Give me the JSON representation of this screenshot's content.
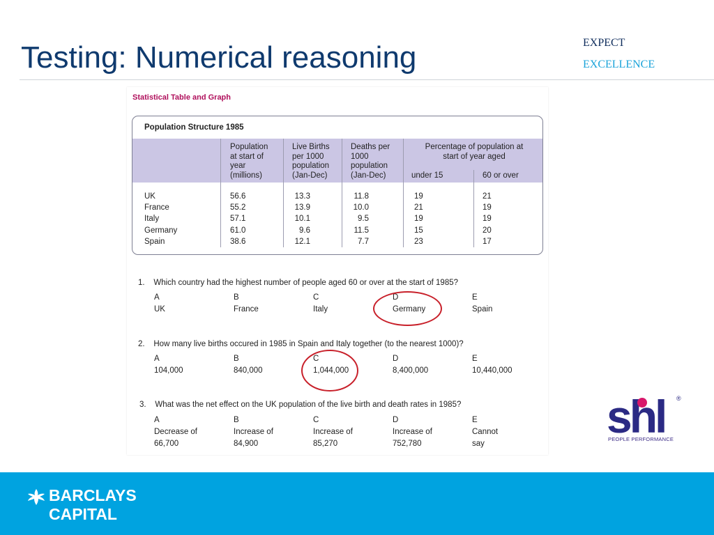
{
  "header": {
    "title": "Testing: Numerical reasoning",
    "tagline_line1": "EXPECT",
    "tagline_line2": "EXCELLENCE"
  },
  "sheet": {
    "heading": "Statistical Table and Graph",
    "table": {
      "title": "Population Structure 1985",
      "col_headers": {
        "population": [
          "Population",
          "at start of",
          "year",
          "(millions)"
        ],
        "births": [
          "Live Births",
          "per 1000",
          "population",
          "(Jan-Dec)"
        ],
        "deaths": [
          "Deaths per",
          "1000",
          "population",
          "(Jan-Dec)"
        ],
        "percentage": [
          "Percentage of population at",
          "start of year aged"
        ],
        "under15": "under 15",
        "over60": "60 or over"
      },
      "rows": [
        {
          "country": "UK",
          "population": "56.6",
          "births": "13.3",
          "deaths": "11.8",
          "under15": "19",
          "over60": "21"
        },
        {
          "country": "France",
          "population": "55.2",
          "births": "13.9",
          "deaths": "10.0",
          "under15": "21",
          "over60": "19"
        },
        {
          "country": "Italy",
          "population": "57.1",
          "births": "10.1",
          "deaths": "9.5",
          "under15": "19",
          "over60": "19"
        },
        {
          "country": "Germany",
          "population": "61.0",
          "births": "9.6",
          "deaths": "11.5",
          "under15": "15",
          "over60": "20"
        },
        {
          "country": "Spain",
          "population": "38.6",
          "births": "12.1",
          "deaths": "7.7",
          "under15": "23",
          "over60": "17"
        }
      ]
    },
    "questions": [
      {
        "number": "1.",
        "text": "Which country had the highest number of people aged 60 or over at the start of 1985?",
        "options": [
          {
            "letter": "A",
            "text": "UK"
          },
          {
            "letter": "B",
            "text": "France"
          },
          {
            "letter": "C",
            "text": "Italy"
          },
          {
            "letter": "D",
            "text": "Germany"
          },
          {
            "letter": "E",
            "text": "Spain"
          }
        ],
        "circled": "D"
      },
      {
        "number": "2.",
        "text": "How many live births occured in 1985 in Spain and Italy together (to the nearest 1000)?",
        "options": [
          {
            "letter": "A",
            "text": "104,000"
          },
          {
            "letter": "B",
            "text": "840,000"
          },
          {
            "letter": "C",
            "text": "1,044,000"
          },
          {
            "letter": "D",
            "text": "8,400,000"
          },
          {
            "letter": "E",
            "text": "10,440,000"
          }
        ],
        "circled": "C"
      },
      {
        "number": "3.",
        "text": "What was the net effect on the UK population of the live birth and death rates in 1985?",
        "options": [
          {
            "letter": "A",
            "text": [
              "Decrease of",
              "66,700"
            ]
          },
          {
            "letter": "B",
            "text": [
              "Increase of",
              "84,900"
            ]
          },
          {
            "letter": "C",
            "text": [
              "Increase of",
              "85,270"
            ]
          },
          {
            "letter": "D",
            "text": [
              "Increase of",
              "752,780"
            ]
          },
          {
            "letter": "E",
            "text": [
              "Cannot",
              "say"
            ]
          }
        ]
      }
    ]
  },
  "logos": {
    "shl_wordmark": "shl",
    "shl_registered": "®",
    "shl_tagline": "PEOPLE PERFORMANCE",
    "barclays_line1": "BARCLAYS",
    "barclays_line2": "CAPITAL",
    "barclays_icon": "eagle-icon"
  },
  "colors": {
    "title": "#0f3a6e",
    "tagline_dark": "#0f2d5c",
    "tagline_light": "#1aa3d9",
    "heading_magenta": "#b0105c",
    "table_band": "#cbc6e4",
    "answer_circle": "#c8202a",
    "footer": "#00a3e0",
    "shl_blue": "#2b2a84",
    "shl_pink": "#d8176b"
  }
}
